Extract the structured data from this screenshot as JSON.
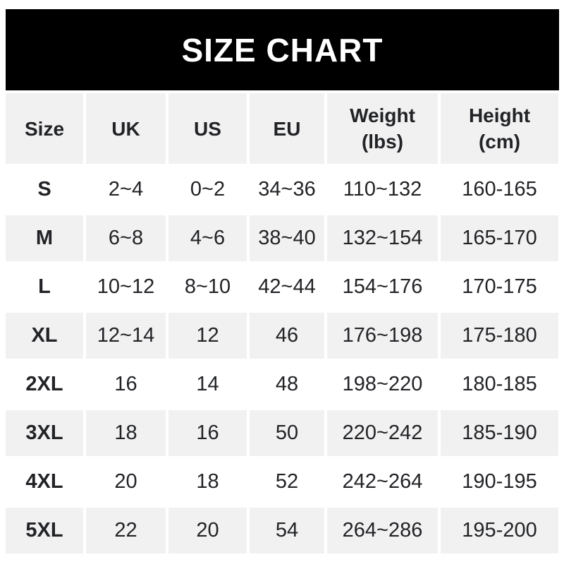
{
  "colors": {
    "banner_bg": "#000000",
    "banner_text": "#ffffff",
    "row_stripe_gray": "#f1f1f1",
    "row_stripe_white": "#ffffff",
    "text": "#222326"
  },
  "chart_data": {
    "type": "table",
    "title": "SIZE CHART",
    "columns": [
      "Size",
      "UK",
      "US",
      "EU",
      "Weight (lbs)",
      "Height (cm)"
    ],
    "header_lines": [
      [
        "Size",
        ""
      ],
      [
        "UK",
        ""
      ],
      [
        "US",
        ""
      ],
      [
        "EU",
        ""
      ],
      [
        "Weight",
        "(lbs)"
      ],
      [
        "Height",
        "(cm)"
      ]
    ],
    "rows": [
      {
        "size": "S",
        "uk": "2~4",
        "us": "0~2",
        "eu": "34~36",
        "weight_lbs": "110~132",
        "height_cm": "160-165"
      },
      {
        "size": "M",
        "uk": "6~8",
        "us": "4~6",
        "eu": "38~40",
        "weight_lbs": "132~154",
        "height_cm": "165-170"
      },
      {
        "size": "L",
        "uk": "10~12",
        "us": "8~10",
        "eu": "42~44",
        "weight_lbs": "154~176",
        "height_cm": "170-175"
      },
      {
        "size": "XL",
        "uk": "12~14",
        "us": "12",
        "eu": "46",
        "weight_lbs": "176~198",
        "height_cm": "175-180"
      },
      {
        "size": "2XL",
        "uk": "16",
        "us": "14",
        "eu": "48",
        "weight_lbs": "198~220",
        "height_cm": "180-185"
      },
      {
        "size": "3XL",
        "uk": "18",
        "us": "16",
        "eu": "50",
        "weight_lbs": "220~242",
        "height_cm": "185-190"
      },
      {
        "size": "4XL",
        "uk": "20",
        "us": "18",
        "eu": "52",
        "weight_lbs": "242~264",
        "height_cm": "190-195"
      },
      {
        "size": "5XL",
        "uk": "22",
        "us": "20",
        "eu": "54",
        "weight_lbs": "264~286",
        "height_cm": "195-200"
      }
    ]
  }
}
